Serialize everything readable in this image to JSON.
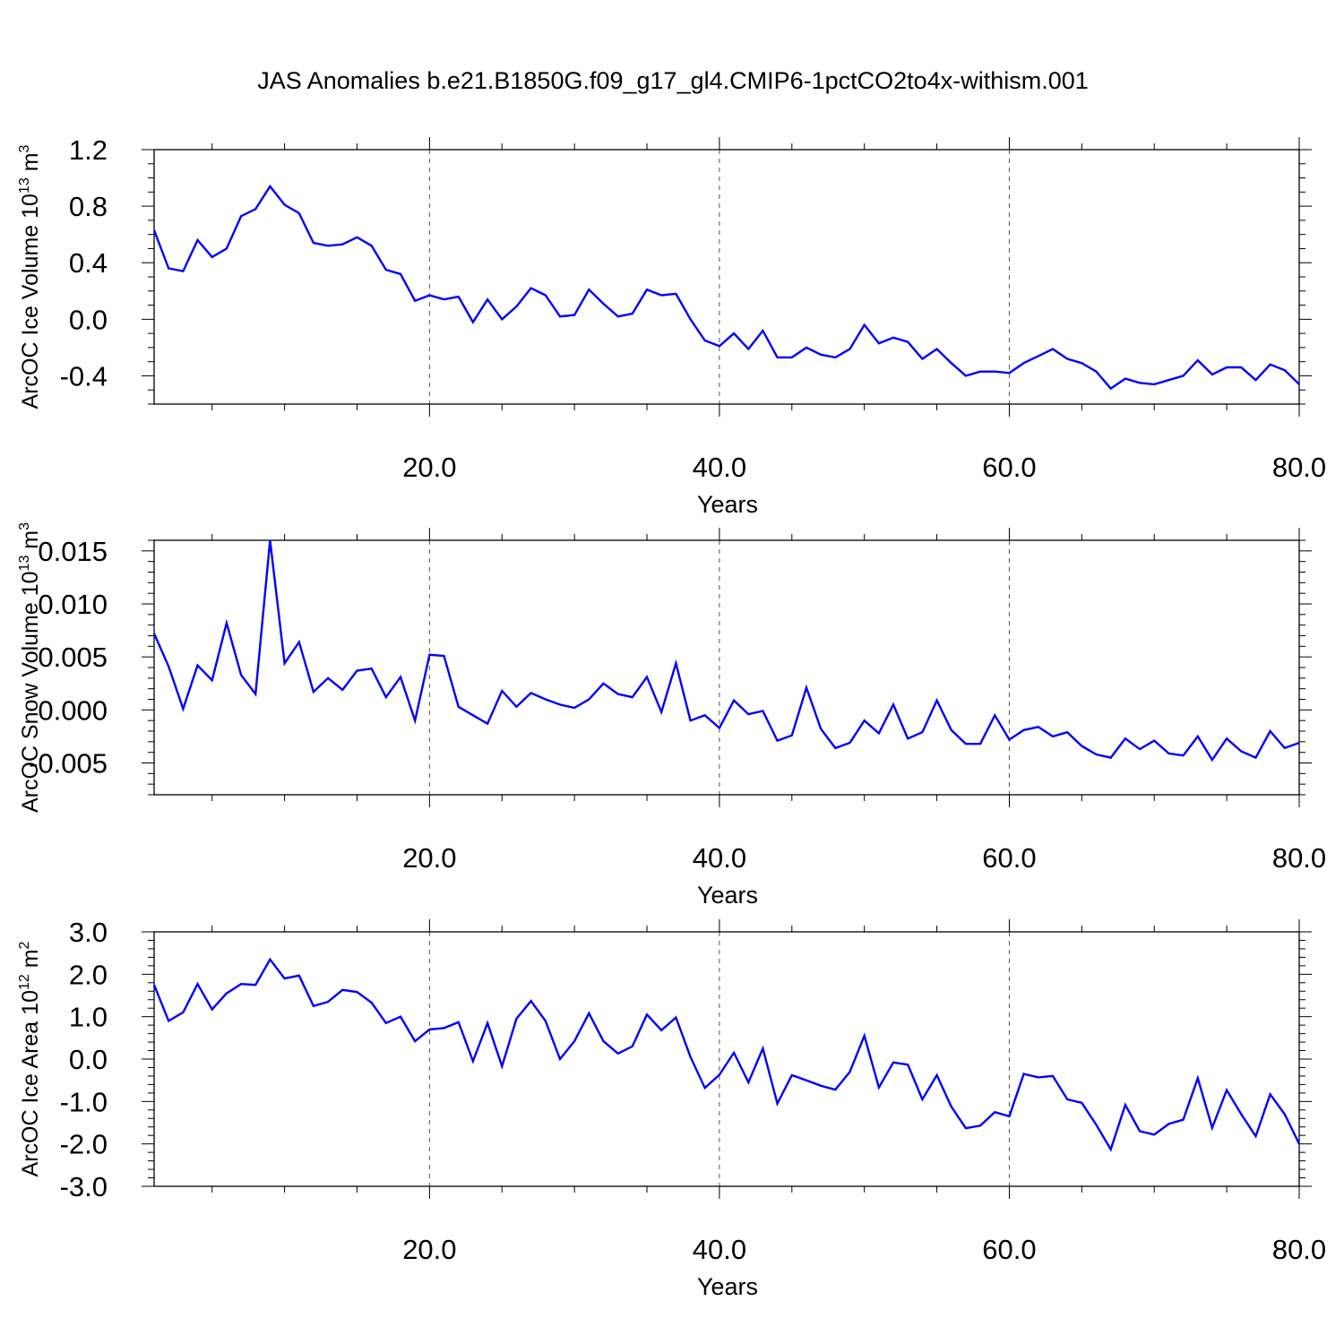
{
  "title": "JAS Anomalies b.e21.B1850G.f09_g17_gl4.CMIP6-1pctCO2to4x-withism.001",
  "chart_data": [
    {
      "type": "line",
      "xlabel": "Years",
      "ylabel": {
        "main": "ArcOC Ice Volume 10",
        "exp": "13",
        "unit": " m",
        "unit_exp": "3"
      },
      "xlim": [
        1,
        80
      ],
      "ylim": [
        -0.6,
        1.2
      ],
      "xticks": [
        20,
        40,
        60,
        80
      ],
      "xtick_labels": [
        "20.0",
        "40.0",
        "60.0",
        "80.0"
      ],
      "yticks": [
        1.2,
        0.8,
        0.4,
        0.0,
        -0.4
      ],
      "ytick_labels": [
        "1.2",
        "0.8",
        "0.4",
        "0.0",
        "-0.4"
      ],
      "yminor_step": 0.1,
      "line_color": "#0000ff",
      "grid": "dashed vertical at major x ticks",
      "series": [
        {
          "values": [
            0.63,
            0.36,
            0.34,
            0.56,
            0.44,
            0.5,
            0.73,
            0.78,
            0.94,
            0.81,
            0.75,
            0.54,
            0.52,
            0.53,
            0.58,
            0.52,
            0.35,
            0.32,
            0.13,
            0.17,
            0.14,
            0.16,
            -0.02,
            0.14,
            0.0,
            0.09,
            0.22,
            0.17,
            0.02,
            0.03,
            0.21,
            0.11,
            0.02,
            0.04,
            0.21,
            0.17,
            0.18,
            0.0,
            -0.15,
            -0.19,
            -0.1,
            -0.21,
            -0.08,
            -0.27,
            -0.27,
            -0.2,
            -0.25,
            -0.27,
            -0.21,
            -0.04,
            -0.17,
            -0.13,
            -0.16,
            -0.28,
            -0.21,
            -0.31,
            -0.4,
            -0.37,
            -0.37,
            -0.38,
            -0.31,
            -0.26,
            -0.21,
            -0.28,
            -0.31,
            -0.37,
            -0.49,
            -0.42,
            -0.45,
            -0.46,
            -0.43,
            -0.4,
            -0.29,
            -0.39,
            -0.34,
            -0.34,
            -0.43,
            -0.32,
            -0.36,
            -0.46
          ]
        }
      ]
    },
    {
      "type": "line",
      "xlabel": "Years",
      "ylabel": {
        "main": "ArcOC Snow Volume 10",
        "exp": "13",
        "unit": " m",
        "unit_exp": "3"
      },
      "xlim": [
        1,
        80
      ],
      "ylim": [
        -0.008,
        0.016
      ],
      "xticks": [
        20,
        40,
        60,
        80
      ],
      "xtick_labels": [
        "20.0",
        "40.0",
        "60.0",
        "80.0"
      ],
      "yticks": [
        0.015,
        0.01,
        0.005,
        0.0,
        -0.005
      ],
      "ytick_labels": [
        "0.015",
        "0.010",
        "0.005",
        "0.000",
        "-0.005"
      ],
      "yminor_step": 0.001,
      "line_color": "#0000ff",
      "grid": "dashed vertical at major x ticks",
      "series": [
        {
          "values": [
            0.0072,
            0.0041,
            0.0001,
            0.0042,
            0.0028,
            0.0082,
            0.0033,
            0.0015,
            0.016,
            0.0044,
            0.0064,
            0.0017,
            0.003,
            0.0019,
            0.0037,
            0.0039,
            0.0012,
            0.0031,
            -0.001,
            0.0052,
            0.0051,
            0.0003,
            -0.0005,
            -0.0013,
            0.0018,
            0.0003,
            0.0016,
            0.001,
            0.0005,
            0.0002,
            0.001,
            0.0025,
            0.0015,
            0.0012,
            0.0031,
            -0.0002,
            0.0044,
            -0.001,
            -0.0005,
            -0.0017,
            0.0009,
            -0.0004,
            -0.0001,
            -0.0029,
            -0.0024,
            0.0021,
            -0.0018,
            -0.0036,
            -0.0031,
            -0.001,
            -0.0022,
            0.0005,
            -0.0027,
            -0.0021,
            0.0009,
            -0.0019,
            -0.0032,
            -0.0032,
            -0.0005,
            -0.0028,
            -0.0019,
            -0.0016,
            -0.0025,
            -0.0021,
            -0.0034,
            -0.0042,
            -0.0045,
            -0.0027,
            -0.0037,
            -0.0029,
            -0.0041,
            -0.0043,
            -0.0025,
            -0.0047,
            -0.0027,
            -0.0039,
            -0.0045,
            -0.002,
            -0.0036,
            -0.0031
          ]
        }
      ]
    },
    {
      "type": "line",
      "xlabel": "Years",
      "ylabel": {
        "main": "ArcOC Ice Area 10",
        "exp": "12",
        "unit": " m",
        "unit_exp": "2"
      },
      "xlim": [
        1,
        80
      ],
      "ylim": [
        -3.0,
        3.0
      ],
      "xticks": [
        20,
        40,
        60,
        80
      ],
      "xtick_labels": [
        "20.0",
        "40.0",
        "60.0",
        "80.0"
      ],
      "yticks": [
        3.0,
        2.0,
        1.0,
        0.0,
        -1.0,
        -2.0,
        -3.0
      ],
      "ytick_labels": [
        "3.0",
        "2.0",
        "1.0",
        "0.0",
        "-1.0",
        "-2.0",
        "-3.0"
      ],
      "yminor_step": 0.2,
      "line_color": "#0000ff",
      "grid": "dashed vertical at major x ticks",
      "series": [
        {
          "values": [
            1.75,
            0.9,
            1.1,
            1.77,
            1.17,
            1.55,
            1.77,
            1.75,
            2.35,
            1.9,
            1.97,
            1.25,
            1.35,
            1.63,
            1.58,
            1.33,
            0.85,
            1.0,
            0.42,
            0.7,
            0.73,
            0.87,
            -0.05,
            0.85,
            -0.17,
            0.95,
            1.37,
            0.9,
            0.0,
            0.42,
            1.08,
            0.42,
            0.13,
            0.3,
            1.05,
            0.68,
            0.98,
            0.05,
            -0.68,
            -0.37,
            0.15,
            -0.55,
            0.25,
            -1.05,
            -0.38,
            -0.5,
            -0.63,
            -0.72,
            -0.3,
            0.55,
            -0.67,
            -0.08,
            -0.13,
            -0.95,
            -0.38,
            -1.12,
            -1.63,
            -1.57,
            -1.25,
            -1.35,
            -0.35,
            -0.43,
            -0.4,
            -0.95,
            -1.03,
            -1.55,
            -2.13,
            -1.08,
            -1.7,
            -1.78,
            -1.53,
            -1.43,
            -0.45,
            -1.62,
            -0.73,
            -1.3,
            -1.82,
            -0.83,
            -1.3,
            -2.0
          ]
        }
      ]
    }
  ]
}
